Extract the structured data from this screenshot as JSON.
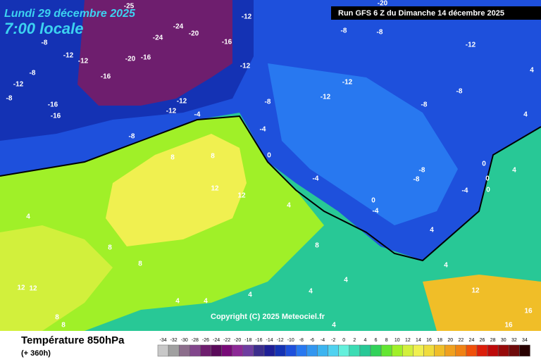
{
  "header": {
    "date": "Lundi 29 décembre 2025",
    "time": "7:00 locale",
    "run": "Run GFS 6 Z du Dimanche 14 décembre 2025"
  },
  "map": {
    "labels": [
      -25,
      -20,
      -12,
      -8,
      -12,
      -12,
      -16,
      -20,
      -16,
      -24,
      -24,
      -20,
      -16,
      -12,
      -8,
      -12,
      -8,
      -16,
      -16,
      -12,
      -12,
      -4,
      -8,
      -8,
      -8,
      -12,
      -12,
      -12,
      -8,
      -8,
      -8,
      -4,
      0,
      8,
      8,
      12,
      12,
      4,
      8,
      8,
      12,
      12,
      8,
      8,
      4,
      4,
      4,
      4,
      4,
      0,
      -4,
      -8,
      -8,
      -4,
      0,
      0,
      0,
      4,
      4,
      4,
      12,
      16,
      16,
      4,
      4,
      -4,
      4,
      8,
      4
    ],
    "copyright": "Copyright (C) 2025 Meteociel.fr"
  },
  "legend": {
    "title": "Température 850hPa",
    "subtitle": "(+ 360h)",
    "ticks": [
      -34,
      -32,
      -30,
      -28,
      -26,
      -24,
      -22,
      -20,
      -18,
      -16,
      -14,
      -12,
      -10,
      -8,
      -6,
      -4,
      -2,
      0,
      2,
      4,
      6,
      8,
      10,
      12,
      14,
      16,
      18,
      20,
      22,
      24,
      26,
      28,
      30,
      32,
      34
    ],
    "colors": [
      "#c8c8c8",
      "#a0a0a0",
      "#8c6e8c",
      "#82468c",
      "#6e1e6e",
      "#5a0a5a",
      "#780a78",
      "#8c2896",
      "#6e3ca0",
      "#3c2d8c",
      "#1e1e96",
      "#1432b4",
      "#1e50dc",
      "#2878f0",
      "#3296f0",
      "#3cb4f0",
      "#50d2f0",
      "#64f0dc",
      "#3cdcb4",
      "#28c896",
      "#32d25a",
      "#64e632",
      "#a0f028",
      "#d2f03c",
      "#f0f050",
      "#f0dc3c",
      "#f0be28",
      "#f0a01e",
      "#f08214",
      "#f0500a",
      "#dc1e0a",
      "#be0a0a",
      "#960a0a",
      "#6e0a0a",
      "#280000"
    ]
  }
}
